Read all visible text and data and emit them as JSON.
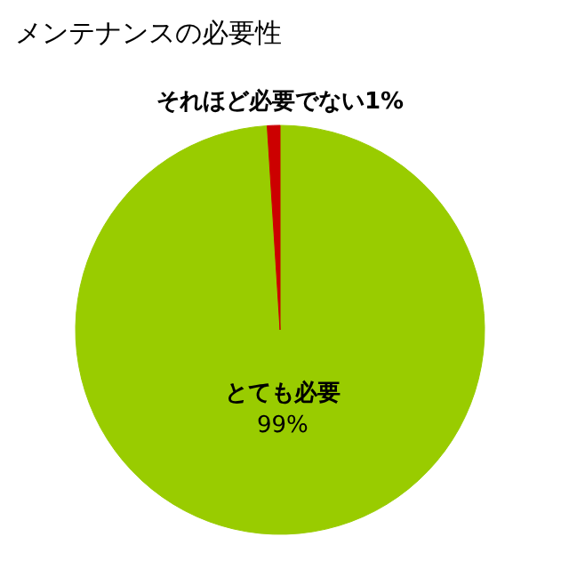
{
  "chart_data": {
    "type": "pie",
    "title": "メンテナンスの必要性",
    "categories": [
      "とても必要",
      "それほど必要でない"
    ],
    "values": [
      99,
      1
    ],
    "colors": [
      "#99cc00",
      "#cc0000"
    ],
    "value_labels": [
      "99%",
      "1%"
    ]
  }
}
